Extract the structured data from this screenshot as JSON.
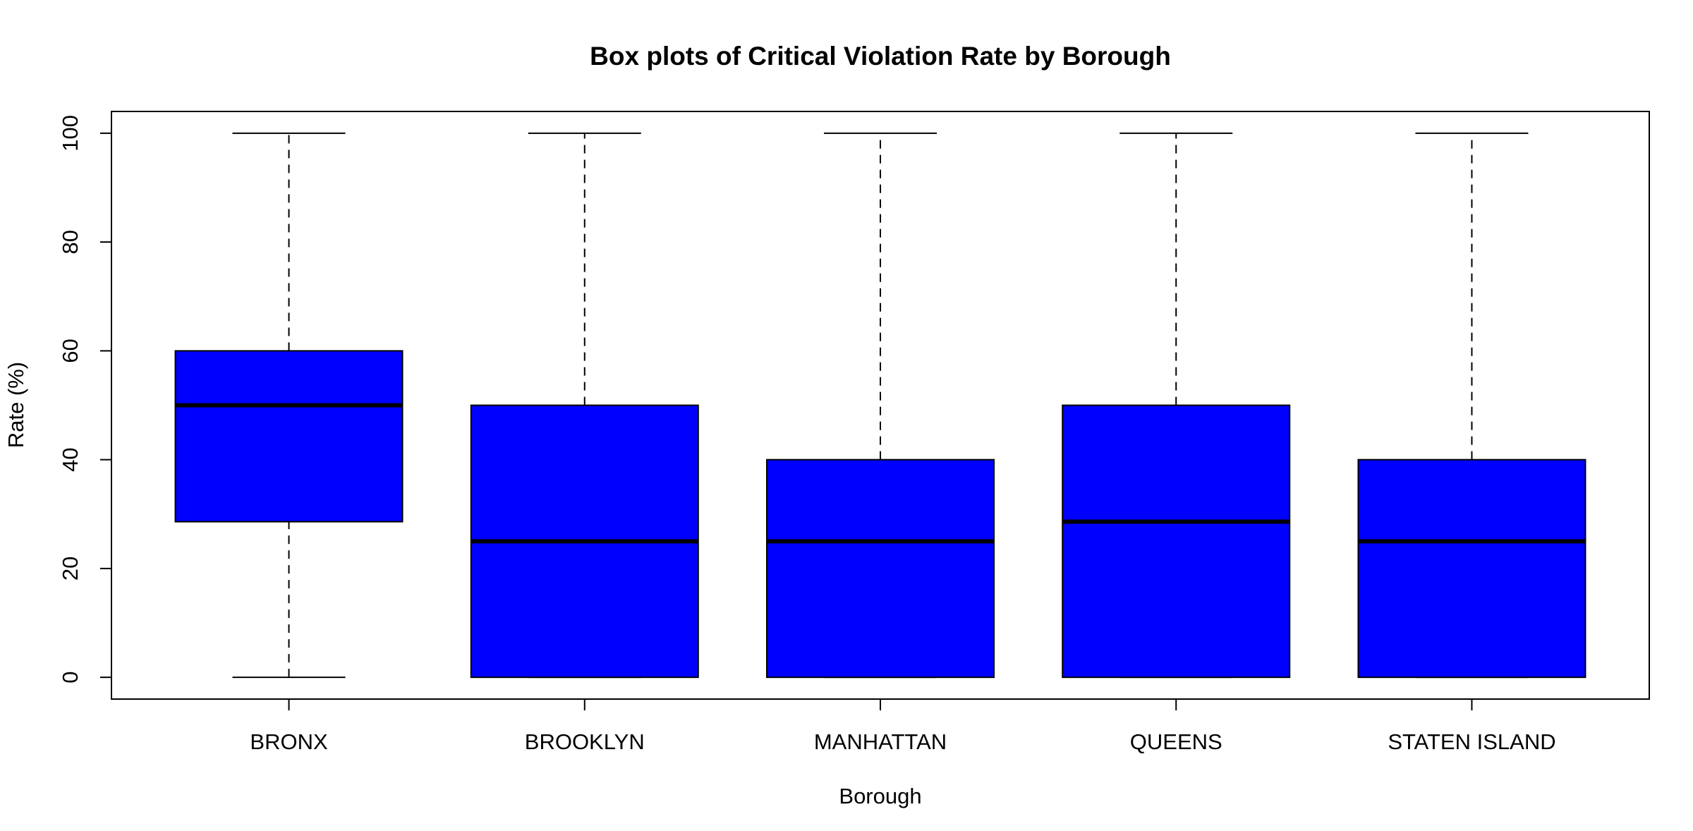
{
  "chart_data": {
    "type": "box",
    "title": "Box plots of Critical Violation Rate by Borough",
    "xlabel": "Borough",
    "ylabel": "Rate (%)",
    "ylim": [
      -4,
      104
    ],
    "yticks": [
      0,
      20,
      40,
      60,
      80,
      100
    ],
    "grid": false,
    "legend": "none",
    "box_color": "#0000ff",
    "categories": [
      "BRONX",
      "BROOKLYN",
      "MANHATTAN",
      "QUEENS",
      "STATEN ISLAND"
    ],
    "boxes": [
      {
        "min": 0,
        "q1": 28.6,
        "median": 50,
        "q3": 60,
        "max": 100
      },
      {
        "min": 0,
        "q1": 0,
        "median": 25,
        "q3": 50,
        "max": 100
      },
      {
        "min": 0,
        "q1": 0,
        "median": 25,
        "q3": 40,
        "max": 100
      },
      {
        "min": 0,
        "q1": 0,
        "median": 28.6,
        "q3": 50,
        "max": 100
      },
      {
        "min": 0,
        "q1": 0,
        "median": 25,
        "q3": 40,
        "max": 100
      }
    ]
  }
}
